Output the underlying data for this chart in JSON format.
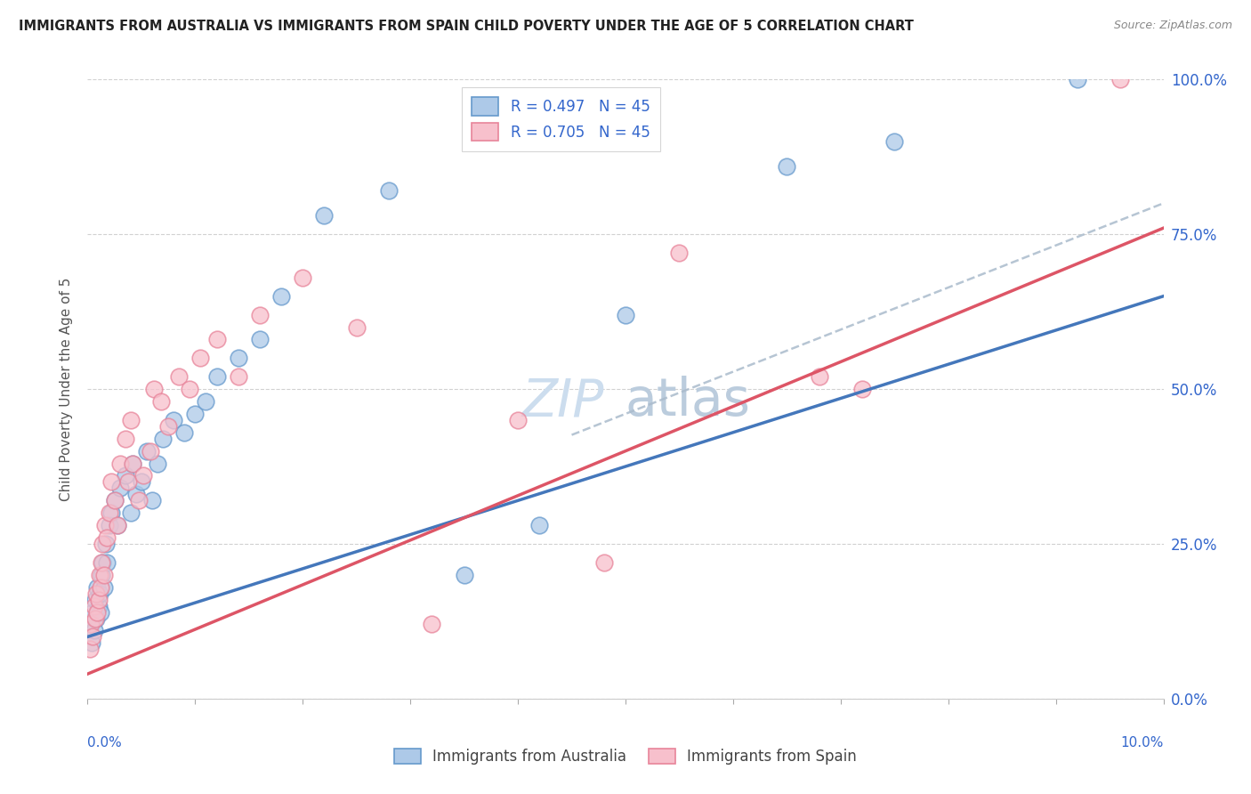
{
  "title": "IMMIGRANTS FROM AUSTRALIA VS IMMIGRANTS FROM SPAIN CHILD POVERTY UNDER THE AGE OF 5 CORRELATION CHART",
  "source": "Source: ZipAtlas.com",
  "ylabel": "Child Poverty Under the Age of 5",
  "ytick_values": [
    0,
    25,
    50,
    75,
    100
  ],
  "legend_bottom": [
    "Immigrants from Australia",
    "Immigrants from Spain"
  ],
  "R_australia": 0.497,
  "R_spain": 0.705,
  "N": 45,
  "blue_fill": "#adc9e8",
  "pink_fill": "#f7c0cc",
  "blue_edge": "#6699cc",
  "pink_edge": "#e8849a",
  "blue_line_color": "#4477bb",
  "pink_line_color": "#dd5566",
  "dashed_line_color": "#aabbcc",
  "background_color": "#ffffff",
  "grid_color": "#cccccc",
  "title_color": "#222222",
  "source_color": "#888888",
  "axis_label_color": "#3366cc",
  "legend_text_color": "#3366cc",
  "watermark_color": "#ccddee",
  "aus_intercept": 10.0,
  "aus_slope": 5.5,
  "spa_intercept": 4.0,
  "spa_slope": 7.2,
  "dash_intercept": 12.0,
  "dash_slope": 6.8,
  "australia_x": [
    0.02,
    0.04,
    0.05,
    0.06,
    0.07,
    0.08,
    0.09,
    0.1,
    0.11,
    0.12,
    0.13,
    0.14,
    0.15,
    0.17,
    0.18,
    0.2,
    0.22,
    0.25,
    0.28,
    0.3,
    0.35,
    0.4,
    0.42,
    0.45,
    0.5,
    0.55,
    0.6,
    0.65,
    0.7,
    0.8,
    0.9,
    1.0,
    1.1,
    1.2,
    1.4,
    1.6,
    1.8,
    2.2,
    2.8,
    3.5,
    4.2,
    5.0,
    6.5,
    7.5,
    9.2
  ],
  "australia_y": [
    12,
    9,
    14,
    11,
    16,
    13,
    18,
    15,
    17,
    14,
    20,
    22,
    18,
    25,
    22,
    28,
    30,
    32,
    28,
    34,
    36,
    30,
    38,
    33,
    35,
    40,
    32,
    38,
    42,
    45,
    43,
    46,
    48,
    52,
    55,
    58,
    65,
    78,
    82,
    20,
    28,
    62,
    86,
    90,
    100
  ],
  "spain_x": [
    0.02,
    0.03,
    0.05,
    0.06,
    0.07,
    0.08,
    0.09,
    0.1,
    0.11,
    0.12,
    0.13,
    0.14,
    0.15,
    0.16,
    0.18,
    0.2,
    0.22,
    0.25,
    0.28,
    0.3,
    0.35,
    0.38,
    0.4,
    0.42,
    0.48,
    0.52,
    0.58,
    0.62,
    0.68,
    0.75,
    0.85,
    0.95,
    1.05,
    1.2,
    1.4,
    1.6,
    2.0,
    2.5,
    3.2,
    4.0,
    4.8,
    5.5,
    6.8,
    7.2,
    9.6
  ],
  "spain_y": [
    8,
    12,
    10,
    15,
    13,
    17,
    14,
    16,
    20,
    18,
    22,
    25,
    20,
    28,
    26,
    30,
    35,
    32,
    28,
    38,
    42,
    35,
    45,
    38,
    32,
    36,
    40,
    50,
    48,
    44,
    52,
    50,
    55,
    58,
    52,
    62,
    68,
    60,
    12,
    45,
    22,
    72,
    52,
    50,
    100
  ]
}
